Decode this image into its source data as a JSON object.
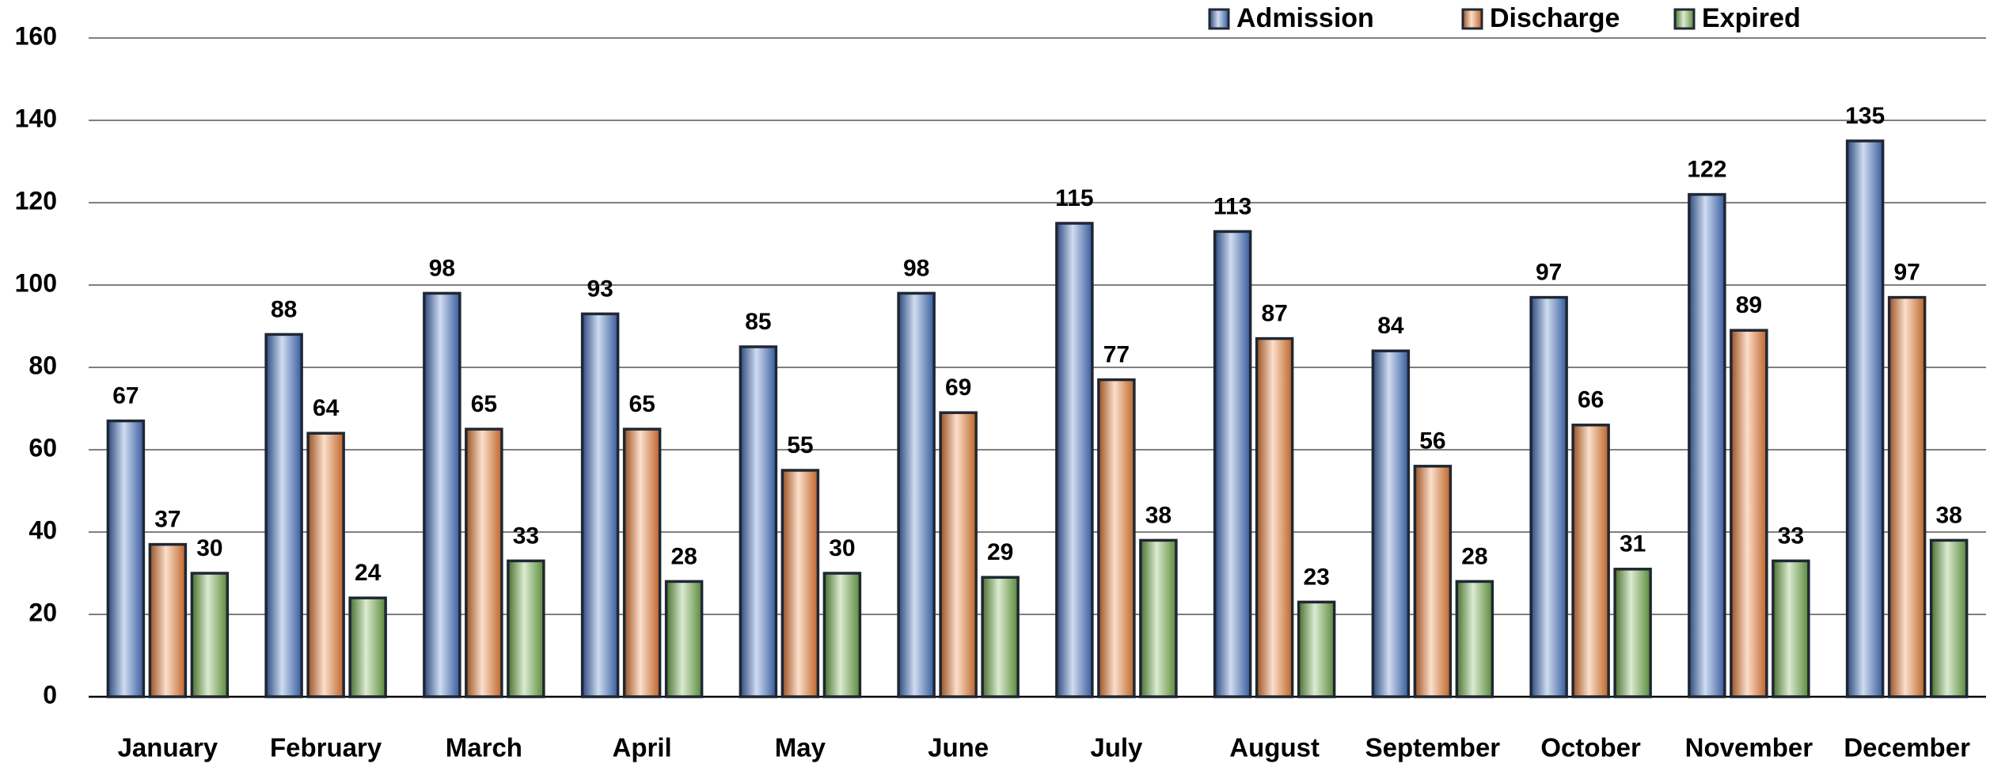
{
  "chart_data": {
    "type": "bar",
    "categories": [
      "January",
      "February",
      "March",
      "April",
      "May",
      "June",
      "July",
      "August",
      "September",
      "October",
      "November",
      "December"
    ],
    "series": [
      {
        "name": "Admission",
        "color": "#4472c4",
        "values": [
          67,
          88,
          98,
          93,
          85,
          98,
          115,
          113,
          84,
          97,
          122,
          135
        ]
      },
      {
        "name": "Discharge",
        "color": "#ed7d31",
        "values": [
          37,
          64,
          65,
          65,
          55,
          69,
          77,
          87,
          56,
          66,
          89,
          97
        ]
      },
      {
        "name": "Expired",
        "color": "#70ad47",
        "values": [
          30,
          24,
          33,
          28,
          30,
          29,
          38,
          23,
          28,
          31,
          33,
          38
        ]
      }
    ],
    "ylim": [
      0,
      160
    ],
    "yticks": [
      0,
      20,
      40,
      60,
      80,
      100,
      120,
      140,
      160
    ],
    "grid": true,
    "legend": "top"
  }
}
